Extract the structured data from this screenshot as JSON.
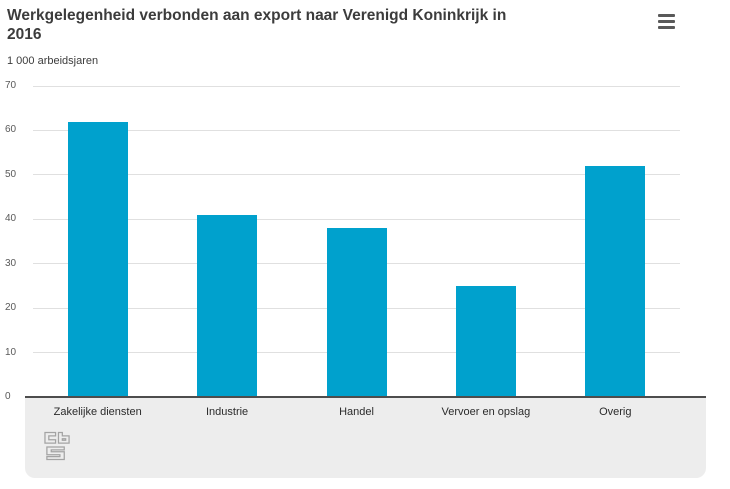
{
  "header": {
    "title_lines": [
      "Werkgelegenheid verbonden aan export naar Verenigd Koninkrijk in",
      "2016"
    ]
  },
  "icons": {
    "menu": "hamburger-menu-icon",
    "logo": "cbs-logo"
  },
  "chart_data": {
    "type": "bar",
    "title": "Werkgelegenheid verbonden aan export naar Verenigd Koninkrijk in 2016",
    "subtitle": "1 000 arbeidsjaren",
    "ylabel": "1 000 arbeidsjaren",
    "xlabel": "",
    "categories": [
      "Zakelijke diensten",
      "Industrie",
      "Handel",
      "Vervoer en opslag",
      "Overig"
    ],
    "values": [
      62,
      41,
      38,
      25,
      52
    ],
    "ylim": [
      0,
      70
    ],
    "yticks": [
      0,
      10,
      20,
      30,
      40,
      50,
      60,
      70
    ],
    "grid": true,
    "legend": false,
    "bar_color": "#00a1cd"
  },
  "colors": {
    "accent": "#00a1cd",
    "axis": "#4d4d4d",
    "gridline": "#e0e0e0",
    "band_background": "#ededed",
    "title_text": "#3c3c3c",
    "tick_text": "#595959",
    "category_text": "#2b2b2b",
    "menu_icon": "#595959",
    "logo_outline": "#a3a3a3",
    "page_background": "#ffffff"
  }
}
